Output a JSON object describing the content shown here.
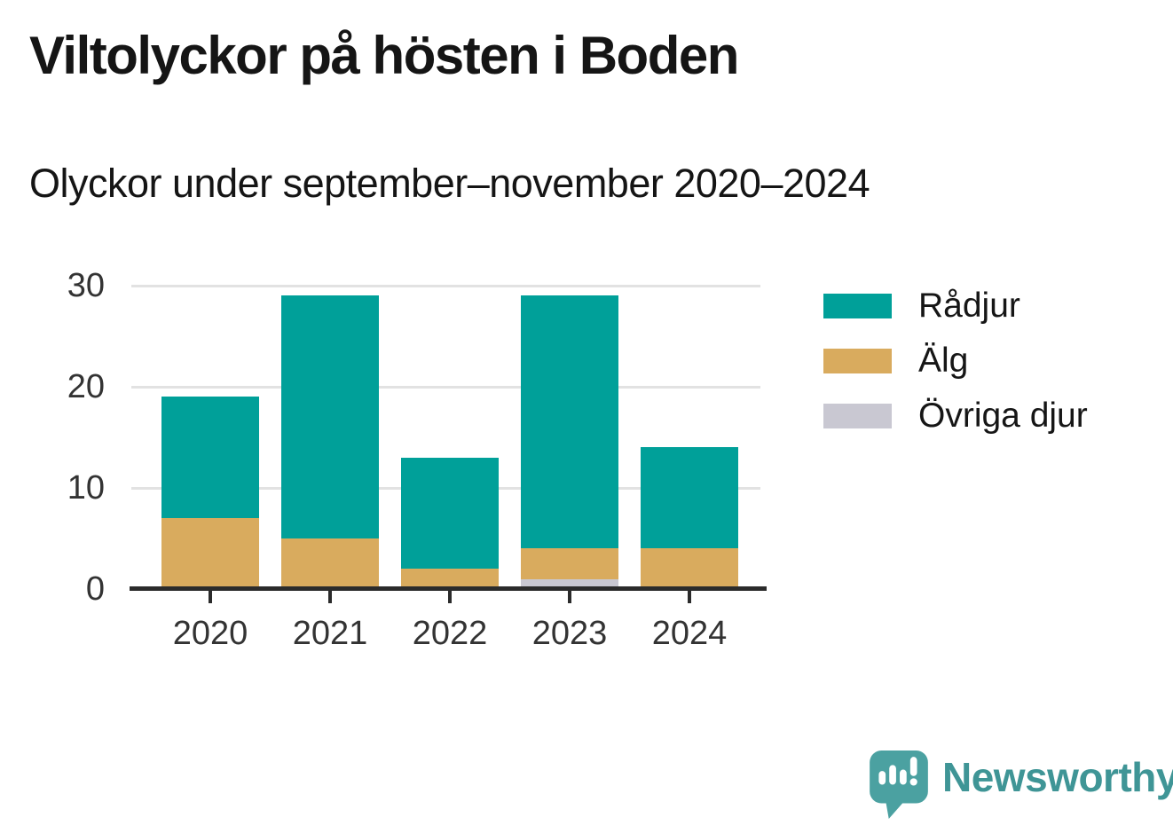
{
  "header": {
    "title": "Viltolyckor på hösten i Boden",
    "subtitle": "Olyckor under september–november 2020–2024"
  },
  "chart_data": {
    "type": "bar",
    "stacked": true,
    "title": "Viltolyckor på hösten i Boden",
    "subtitle": "Olyckor under september–november 2020–2024",
    "categories": [
      "2020",
      "2021",
      "2022",
      "2023",
      "2024"
    ],
    "series": [
      {
        "id": "radjur",
        "name": "Rådjur",
        "color": "#00a099",
        "values": [
          12,
          24,
          11,
          25,
          10
        ]
      },
      {
        "id": "alg",
        "name": "Älg",
        "color": "#d9ab5e",
        "values": [
          7,
          5,
          2,
          3,
          4
        ]
      },
      {
        "id": "ovriga-djur",
        "name": "Övriga djur",
        "color": "#c9c8d2",
        "values": [
          0,
          0,
          0,
          1,
          0
        ]
      }
    ],
    "stack_order_bottom_to_top": [
      "ovriga-djur",
      "alg",
      "radjur"
    ],
    "totals": [
      19,
      29,
      13,
      29,
      14
    ],
    "xlabel": "",
    "ylabel": "",
    "ylim": [
      0,
      30
    ],
    "yticks": [
      0,
      10,
      20,
      30
    ],
    "grid": "horizontal",
    "legend_position": "right"
  },
  "footer": {
    "brand": "Newsworthy",
    "logo_icon": "newsworthy-speech-bubble-bar-chart-icon"
  },
  "colors": {
    "radjur_teal": "#00a099",
    "alg_gold": "#d9ab5e",
    "ovriga_gray": "#c9c8d2",
    "axis_line": "#2b2b2b",
    "gridline": "#e2e2e2",
    "axis_text": "#333333",
    "heading_text": "#151515",
    "brand_teal": "#3f9596",
    "logo_fill": "#4ba1a1",
    "background": "#ffffff"
  }
}
